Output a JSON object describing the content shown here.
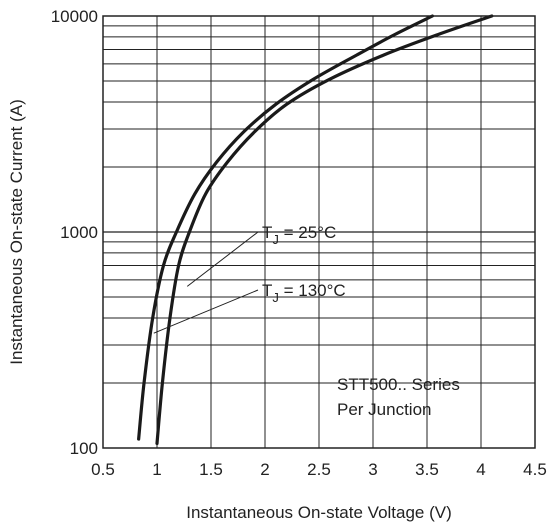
{
  "chart_data": {
    "type": "line",
    "xlabel": "Instantaneous On-state Voltage (V)",
    "ylabel": "Instantaneous On-state Current (A)",
    "x_scale": "linear",
    "y_scale": "log",
    "xlim": [
      0.5,
      4.5
    ],
    "ylim": [
      100,
      10000
    ],
    "x_ticks": [
      "0.5",
      "1",
      "1.5",
      "2",
      "2.5",
      "3",
      "3.5",
      "4",
      "4.5"
    ],
    "y_ticks": [
      "100",
      "1000",
      "10000"
    ],
    "grid": true,
    "series": [
      {
        "name": "TJ = 25°C",
        "x": [
          1.0,
          1.05,
          1.12,
          1.2,
          1.3,
          1.45,
          1.65,
          1.9,
          2.2,
          2.6,
          3.1,
          3.6,
          4.1
        ],
        "y": [
          105,
          200,
          400,
          700,
          1000,
          1500,
          2100,
          2900,
          3900,
          5100,
          6600,
          8200,
          10000
        ]
      },
      {
        "name": "TJ = 130°C",
        "x": [
          0.83,
          0.88,
          0.96,
          1.06,
          1.18,
          1.35,
          1.55,
          1.8,
          2.1,
          2.45,
          2.85,
          3.2,
          3.55
        ],
        "y": [
          110,
          200,
          400,
          700,
          1000,
          1500,
          2100,
          2900,
          3900,
          5100,
          6600,
          8200,
          10000
        ]
      }
    ],
    "annotations": [
      {
        "t": "T",
        "sub": "J",
        "rest": " = 25°C",
        "series": 0
      },
      {
        "t": "T",
        "sub": "J",
        "rest": " = 130°C",
        "series": 1
      },
      {
        "text": "STT500.. Series"
      },
      {
        "text": "Per Junction"
      }
    ]
  }
}
